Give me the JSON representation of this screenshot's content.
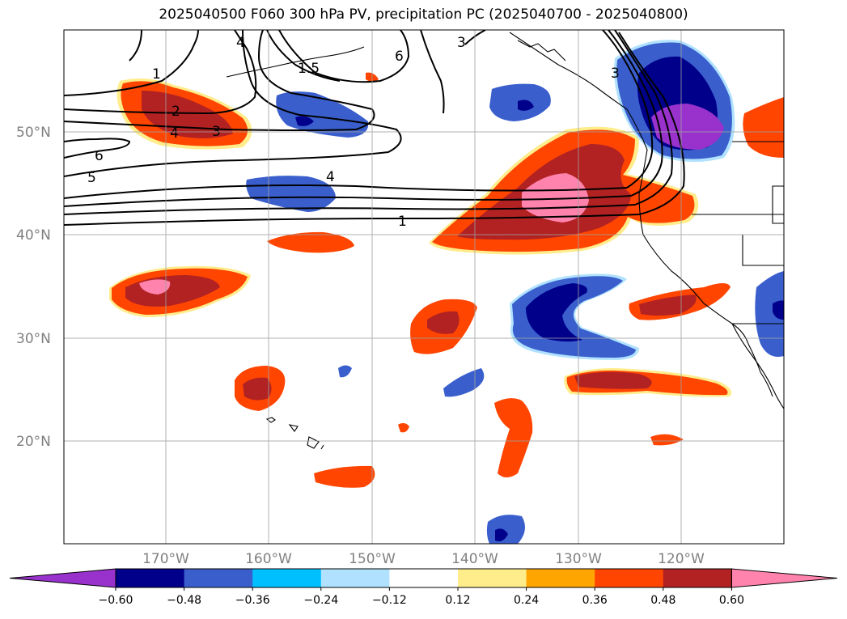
{
  "title": "2025040500 F060 300 hPa PV, precipitation PC (2025040700 - 2025040800)",
  "lat_labels": [
    "50°N",
    "40°N",
    "30°N",
    "20°N"
  ],
  "lon_labels": [
    "170°W",
    "160°W",
    "150°W",
    "140°W",
    "130°W",
    "120°W"
  ],
  "colorbar": {
    "tick_labels": [
      "−0.60",
      "−0.48",
      "−0.36",
      "−0.24",
      "−0.12",
      "0.12",
      "0.24",
      "0.36",
      "0.48",
      "0.60"
    ],
    "colors": [
      "#9932CC",
      "#00008B",
      "#3A5FCD",
      "#00BFFF",
      "#B0E2FF",
      "#FFFFFF",
      "#FFEC8B",
      "#FFA500",
      "#FF4500",
      "#B22222",
      "#FF83AC"
    ]
  },
  "contour_labels": [
    "1",
    "2",
    "3",
    "4",
    "5",
    "6",
    "4",
    "1",
    "4",
    "1.5",
    "6",
    "3",
    "3"
  ]
}
